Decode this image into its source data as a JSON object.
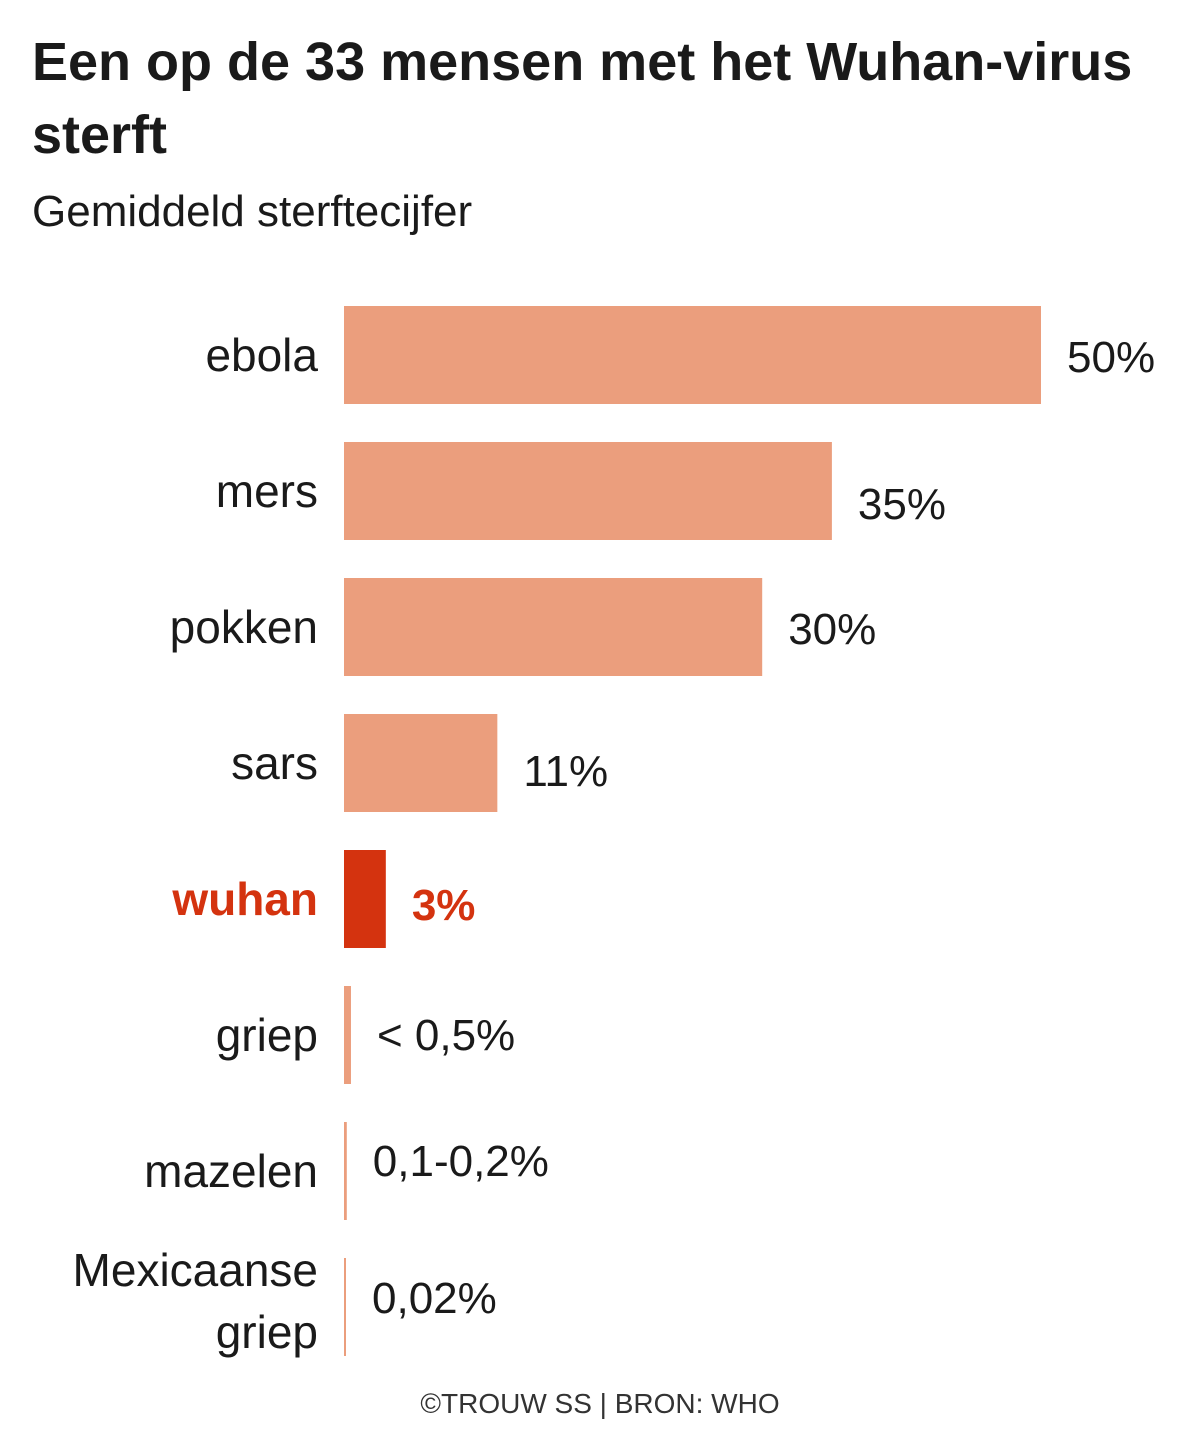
{
  "title": "Een op de 33 mensen met het Wuhan-virus sterft",
  "subtitle": "Gemiddeld sterftecijfer",
  "source": "©TROUW SS | BRON: WHO",
  "colors": {
    "bar": "#eb9e7d",
    "highlight": "#d4330f",
    "text": "#1a1a1a"
  },
  "chart_data": {
    "type": "bar",
    "orientation": "horizontal",
    "title": "Een op de 33 mensen met het Wuhan-virus sterft",
    "subtitle": "Gemiddeld sterftecijfer",
    "xlim": [
      0,
      50
    ],
    "grid": false,
    "legend": "none",
    "categories": [
      "ebola",
      "mers",
      "pokken",
      "sars",
      "wuhan",
      "griep",
      "mazelen",
      "Mexicaanse griep"
    ],
    "values": [
      50,
      35,
      30,
      11,
      3,
      0.5,
      0.2,
      0.02
    ],
    "value_labels": [
      "50%",
      "35%",
      "30%",
      "11%",
      "3%",
      "< 0,5%",
      "0,1-0,2%",
      "0,02%"
    ],
    "highlight": [
      "wuhan"
    ]
  }
}
